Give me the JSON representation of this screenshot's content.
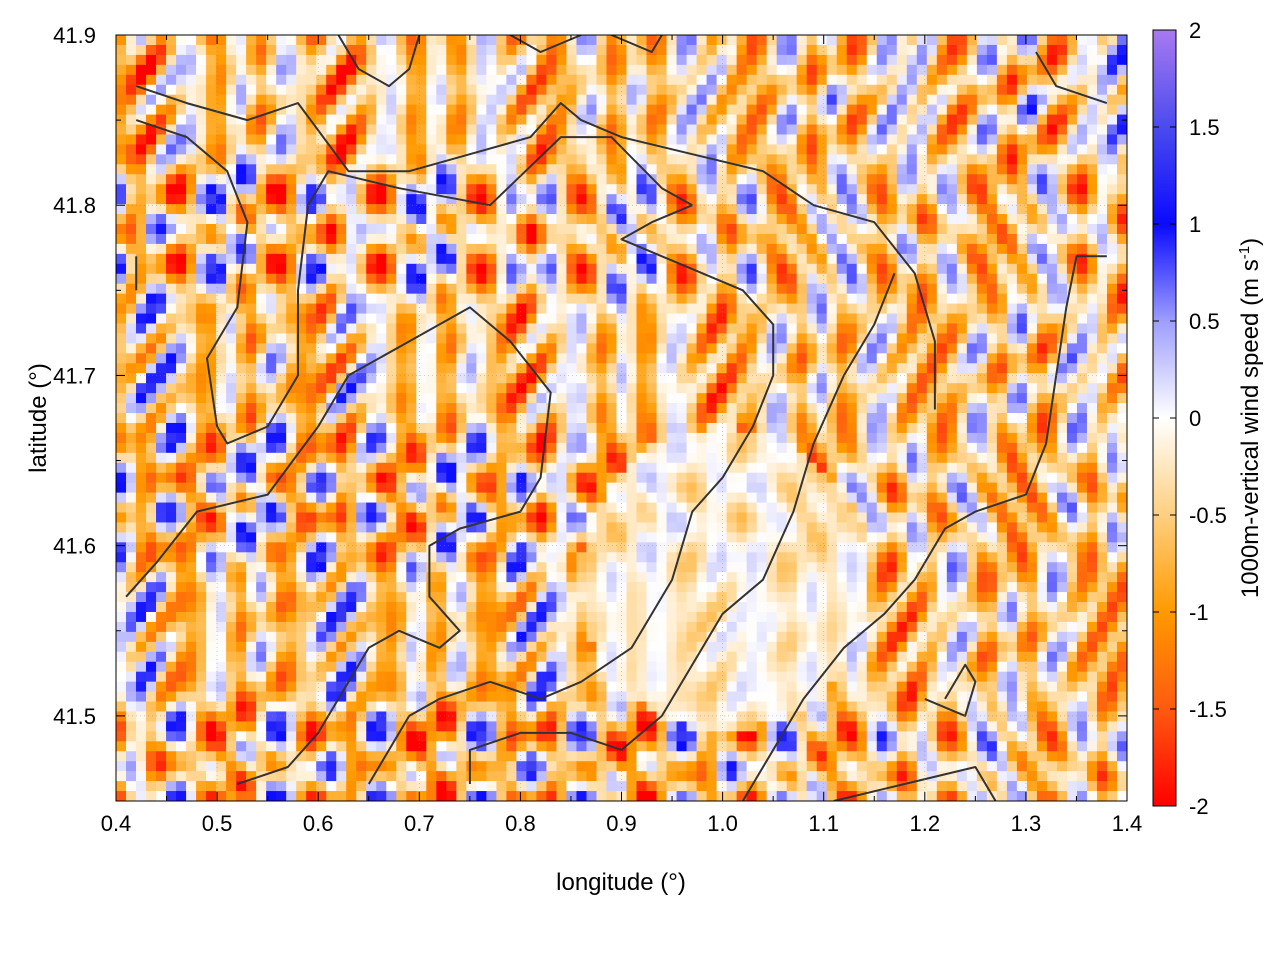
{
  "chart_data": {
    "type": "heatmap",
    "title": "",
    "xlabel": "longitude (°)",
    "ylabel": "latitude (°)",
    "colorbar_label": "1000m-vertical wind speed (m s",
    "colorbar_label_sup": "-1",
    "colorbar_label_end": ")",
    "xlim": [
      0.4,
      1.4
    ],
    "ylim": [
      41.45,
      41.9
    ],
    "x_ticks": [
      "0.4",
      "0.5",
      "0.6",
      "0.7",
      "0.8",
      "0.9",
      "1.0",
      "1.1",
      "1.2",
      "1.3",
      "1.4"
    ],
    "y_ticks": [
      "41.5",
      "41.6",
      "41.7",
      "41.8",
      "41.9"
    ],
    "cbar_range": [
      -2,
      2
    ],
    "cbar_ticks": [
      "2",
      "1.5",
      "1",
      "0.5",
      "0",
      "-0.5",
      "-1",
      "-1.5",
      "-2"
    ],
    "colormap": [
      {
        "v": -2.0,
        "color": "#ff0000"
      },
      {
        "v": -1.5,
        "color": "#ff5a10"
      },
      {
        "v": -1.0,
        "color": "#ff9a00"
      },
      {
        "v": -0.5,
        "color": "#ffcf80"
      },
      {
        "v": 0.0,
        "color": "#ffffff"
      },
      {
        "v": 0.5,
        "color": "#9d9dff"
      },
      {
        "v": 1.0,
        "color": "#0a0aff"
      },
      {
        "v": 1.5,
        "color": "#4b4bee"
      },
      {
        "v": 2.0,
        "color": "#a87af0"
      }
    ],
    "grid": true,
    "legend": "colorbar-right",
    "contour_color": "#333333",
    "contours": [
      [
        [
          0.42,
          41.87
        ],
        [
          0.47,
          41.86
        ],
        [
          0.53,
          41.85
        ],
        [
          0.58,
          41.86
        ],
        [
          0.63,
          41.82
        ],
        [
          0.69,
          41.82
        ],
        [
          0.75,
          41.83
        ],
        [
          0.81,
          41.84
        ],
        [
          0.84,
          41.86
        ],
        [
          0.86,
          41.85
        ],
        [
          0.9,
          41.84
        ],
        [
          0.97,
          41.83
        ],
        [
          1.04,
          41.82
        ],
        [
          1.09,
          41.8
        ],
        [
          1.15,
          41.79
        ],
        [
          1.19,
          41.76
        ],
        [
          1.21,
          41.72
        ],
        [
          1.21,
          41.68
        ]
      ],
      [
        [
          0.42,
          41.85
        ],
        [
          0.47,
          41.84
        ],
        [
          0.51,
          41.82
        ],
        [
          0.53,
          41.79
        ],
        [
          0.52,
          41.74
        ],
        [
          0.49,
          41.71
        ],
        [
          0.5,
          41.67
        ],
        [
          0.51,
          41.66
        ],
        [
          0.55,
          41.67
        ],
        [
          0.58,
          41.7
        ],
        [
          0.58,
          41.75
        ],
        [
          0.59,
          41.8
        ],
        [
          0.61,
          41.82
        ],
        [
          0.68,
          41.81
        ],
        [
          0.77,
          41.8
        ],
        [
          0.84,
          41.84
        ],
        [
          0.89,
          41.84
        ],
        [
          0.94,
          41.81
        ],
        [
          0.97,
          41.8
        ]
      ],
      [
        [
          0.62,
          41.9
        ],
        [
          0.64,
          41.88
        ],
        [
          0.67,
          41.87
        ],
        [
          0.69,
          41.88
        ],
        [
          0.7,
          41.9
        ]
      ],
      [
        [
          0.79,
          41.9
        ],
        [
          0.82,
          41.89
        ],
        [
          0.86,
          41.9
        ]
      ],
      [
        [
          0.89,
          41.9
        ],
        [
          0.93,
          41.89
        ],
        [
          0.94,
          41.9
        ]
      ],
      [
        [
          0.41,
          41.57
        ],
        [
          0.44,
          41.59
        ],
        [
          0.48,
          41.62
        ],
        [
          0.55,
          41.63
        ],
        [
          0.6,
          41.67
        ],
        [
          0.63,
          41.7
        ],
        [
          0.69,
          41.72
        ],
        [
          0.75,
          41.74
        ],
        [
          0.79,
          41.72
        ],
        [
          0.83,
          41.69
        ],
        [
          0.82,
          41.64
        ],
        [
          0.8,
          41.62
        ],
        [
          0.74,
          41.61
        ],
        [
          0.71,
          41.6
        ],
        [
          0.71,
          41.57
        ],
        [
          0.74,
          41.55
        ],
        [
          0.72,
          41.54
        ],
        [
          0.68,
          41.55
        ],
        [
          0.65,
          41.54
        ],
        [
          0.62,
          41.51
        ],
        [
          0.6,
          41.49
        ],
        [
          0.57,
          41.47
        ],
        [
          0.52,
          41.46
        ]
      ],
      [
        [
          0.65,
          41.46
        ],
        [
          0.69,
          41.5
        ],
        [
          0.72,
          41.51
        ],
        [
          0.77,
          41.52
        ],
        [
          0.82,
          41.51
        ],
        [
          0.86,
          41.52
        ],
        [
          0.91,
          41.54
        ],
        [
          0.95,
          41.58
        ],
        [
          0.97,
          41.62
        ],
        [
          1.0,
          41.64
        ],
        [
          1.03,
          41.67
        ],
        [
          1.05,
          41.7
        ],
        [
          1.05,
          41.73
        ],
        [
          1.02,
          41.75
        ],
        [
          0.98,
          41.76
        ],
        [
          0.94,
          41.77
        ],
        [
          0.9,
          41.78
        ],
        [
          0.93,
          41.79
        ],
        [
          0.97,
          41.8
        ]
      ],
      [
        [
          0.75,
          41.46
        ],
        [
          0.75,
          41.48
        ],
        [
          0.8,
          41.49
        ],
        [
          0.85,
          41.49
        ],
        [
          0.9,
          41.48
        ],
        [
          0.94,
          41.5
        ],
        [
          0.97,
          41.53
        ],
        [
          1.0,
          41.56
        ],
        [
          1.04,
          41.58
        ],
        [
          1.07,
          41.62
        ],
        [
          1.09,
          41.66
        ],
        [
          1.12,
          41.7
        ],
        [
          1.15,
          41.73
        ],
        [
          1.17,
          41.76
        ]
      ],
      [
        [
          1.02,
          41.45
        ],
        [
          1.05,
          41.48
        ],
        [
          1.08,
          41.51
        ],
        [
          1.12,
          41.54
        ],
        [
          1.16,
          41.56
        ],
        [
          1.19,
          41.58
        ],
        [
          1.22,
          41.61
        ],
        [
          1.25,
          41.62
        ],
        [
          1.3,
          41.63
        ],
        [
          1.32,
          41.66
        ],
        [
          1.33,
          41.7
        ],
        [
          1.34,
          41.74
        ],
        [
          1.35,
          41.77
        ],
        [
          1.38,
          41.77
        ]
      ],
      [
        [
          1.11,
          41.45
        ],
        [
          1.18,
          41.46
        ],
        [
          1.25,
          41.47
        ],
        [
          1.27,
          41.45
        ]
      ],
      [
        [
          1.2,
          41.51
        ],
        [
          1.24,
          41.5
        ],
        [
          1.25,
          41.52
        ],
        [
          1.24,
          41.53
        ],
        [
          1.22,
          41.51
        ]
      ],
      [
        [
          1.31,
          41.89
        ],
        [
          1.33,
          41.87
        ],
        [
          1.38,
          41.86
        ]
      ],
      [
        [
          0.42,
          41.77
        ],
        [
          0.42,
          41.75
        ]
      ]
    ]
  }
}
